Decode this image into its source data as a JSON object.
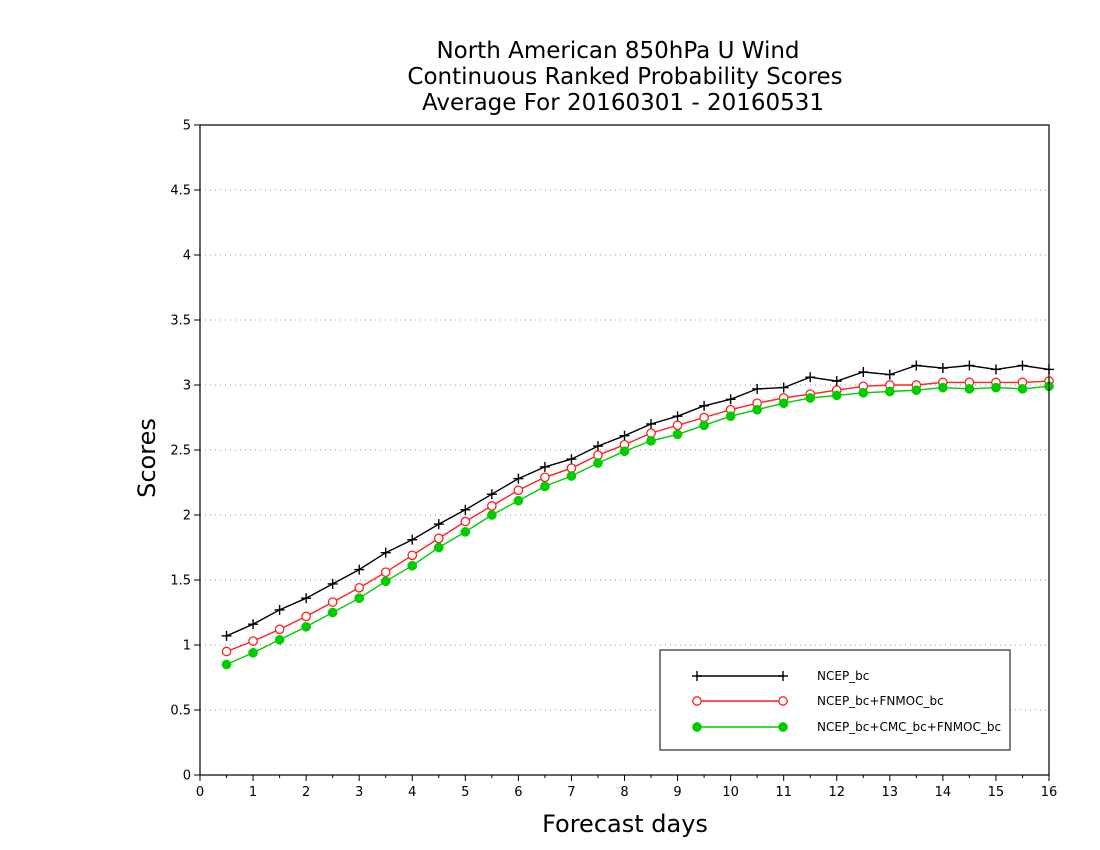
{
  "chart_data": {
    "type": "line",
    "title_lines": [
      "North American 850hPa U Wind",
      "Continuous Ranked Probability Scores",
      "Average For 20160301 - 20160531"
    ],
    "xlabel": "Forecast days",
    "ylabel": "Scores",
    "xlim": [
      0,
      16
    ],
    "ylim": [
      0,
      5
    ],
    "x_ticks": [
      "0",
      "1",
      "2",
      "3",
      "4",
      "5",
      "6",
      "7",
      "8",
      "9",
      "10",
      "11",
      "12",
      "13",
      "14",
      "15",
      "16"
    ],
    "y_ticks": [
      "0",
      "0.5",
      "1",
      "1.5",
      "2",
      "2.5",
      "3",
      "3.5",
      "4",
      "4.5",
      "5"
    ],
    "grid": "horizontal dotted",
    "legend_position": "bottom-right",
    "x": [
      0.5,
      1,
      1.5,
      2,
      2.5,
      3,
      3.5,
      4,
      4.5,
      5,
      5.5,
      6,
      6.5,
      7,
      7.5,
      8,
      8.5,
      9,
      9.5,
      10,
      10.5,
      11,
      11.5,
      12,
      12.5,
      13,
      13.5,
      14,
      14.5,
      15,
      15.5,
      16
    ],
    "series": [
      {
        "name": "NCEP_bc",
        "color": "#000000",
        "marker": "plus",
        "values": [
          1.07,
          1.16,
          1.27,
          1.36,
          1.47,
          1.58,
          1.71,
          1.81,
          1.93,
          2.04,
          2.16,
          2.28,
          2.37,
          2.43,
          2.53,
          2.61,
          2.7,
          2.76,
          2.84,
          2.89,
          2.97,
          2.98,
          3.06,
          3.03,
          3.1,
          3.08,
          3.15,
          3.13,
          3.15,
          3.12,
          3.15,
          3.12
        ]
      },
      {
        "name": "NCEP_bc+FNMOC_bc",
        "color": "#ff2020",
        "marker": "open-circle",
        "values": [
          0.95,
          1.03,
          1.12,
          1.22,
          1.33,
          1.44,
          1.56,
          1.69,
          1.82,
          1.95,
          2.07,
          2.19,
          2.29,
          2.36,
          2.46,
          2.54,
          2.63,
          2.69,
          2.75,
          2.81,
          2.86,
          2.9,
          2.93,
          2.96,
          2.99,
          3.0,
          3.0,
          3.02,
          3.02,
          3.02,
          3.02,
          3.03
        ]
      },
      {
        "name": "NCEP_bc+CMC_bc+FNMOC_bc",
        "color": "#00cc00",
        "marker": "filled-circle",
        "values": [
          0.85,
          0.94,
          1.04,
          1.14,
          1.25,
          1.36,
          1.49,
          1.61,
          1.75,
          1.87,
          2.0,
          2.11,
          2.22,
          2.3,
          2.4,
          2.49,
          2.57,
          2.62,
          2.69,
          2.76,
          2.81,
          2.86,
          2.9,
          2.92,
          2.94,
          2.95,
          2.96,
          2.98,
          2.97,
          2.98,
          2.97,
          2.99
        ]
      }
    ]
  }
}
